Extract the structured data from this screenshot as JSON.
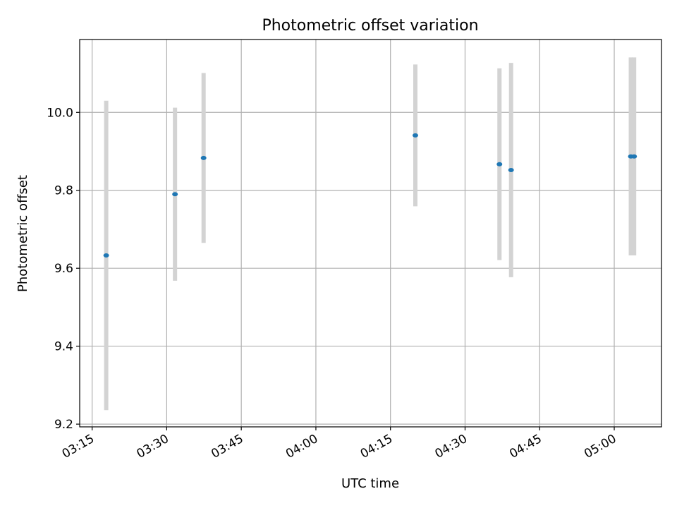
{
  "chart_data": {
    "type": "scatter",
    "title": "Photometric offset variation",
    "xlabel": "UTC time",
    "ylabel": "Photometric offset",
    "x_ticks": [
      "03:15",
      "03:30",
      "03:45",
      "04:00",
      "04:15",
      "04:30",
      "04:45",
      "05:00"
    ],
    "y_ticks": [
      "9.2",
      "9.4",
      "9.6",
      "9.8",
      "10.0"
    ],
    "xlim": [
      "03:12:30",
      "05:09:30"
    ],
    "ylim": [
      9.193,
      10.187
    ],
    "grid": true,
    "errorbar_color": "#d3d3d3",
    "marker_color": "#1f77b4",
    "points": [
      {
        "time": "03:17:50",
        "y": 9.633,
        "err": 0.397
      },
      {
        "time": "03:31:40",
        "y": 9.79,
        "err": 0.222
      },
      {
        "time": "03:37:25",
        "y": 9.883,
        "err": 0.218
      },
      {
        "time": "04:20:00",
        "y": 9.941,
        "err": 0.182
      },
      {
        "time": "04:36:55",
        "y": 9.867,
        "err": 0.246
      },
      {
        "time": "04:39:15",
        "y": 9.852,
        "err": 0.275
      },
      {
        "time": "05:03:20",
        "y": 9.887,
        "err": 0.254
      },
      {
        "time": "05:04:00",
        "y": 9.887,
        "err": 0.254
      }
    ]
  }
}
